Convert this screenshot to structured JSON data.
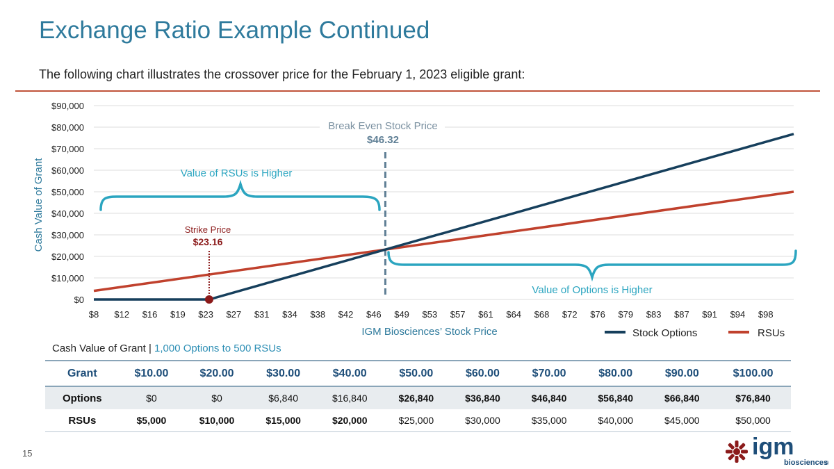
{
  "title": "Exchange Ratio Example Continued",
  "subtitle": "The following chart illustrates the crossover price for the February 1, 2023 eligible grant:",
  "page_number": "15",
  "logo": {
    "main": "igm",
    "sub": "biosciences",
    "reg": "®"
  },
  "chart_data": {
    "type": "line",
    "x_ticks": [
      "$8",
      "$12",
      "$16",
      "$19",
      "$23",
      "$27",
      "$31",
      "$34",
      "$38",
      "$42",
      "$46",
      "$49",
      "$53",
      "$57",
      "$61",
      "$64",
      "$68",
      "$72",
      "$76",
      "$79",
      "$83",
      "$87",
      "$91",
      "$94",
      "$98"
    ],
    "xlim": [
      8,
      100
    ],
    "ylim": [
      0,
      90000
    ],
    "y_ticks": [
      {
        "value": 0,
        "label": "$0"
      },
      {
        "value": 10000,
        "label": "$10,000"
      },
      {
        "value": 20000,
        "label": "$20,000"
      },
      {
        "value": 30000,
        "label": "$30,000"
      },
      {
        "value": 40000,
        "label": "$40,000"
      },
      {
        "value": 50000,
        "label": "$50,000"
      },
      {
        "value": 60000,
        "label": "$60,000"
      },
      {
        "value": 70000,
        "label": "$70,000"
      },
      {
        "value": 80000,
        "label": "$80,000"
      },
      {
        "value": 90000,
        "label": "$90,000"
      }
    ],
    "xlabel": "IGM Biosciences’ Stock Price",
    "ylabel": "Cash Value of Grant",
    "series": [
      {
        "name": "Stock Options",
        "color": "#163f5c",
        "points": [
          [
            8,
            0
          ],
          [
            23.16,
            0
          ],
          [
            100,
            76840
          ]
        ]
      },
      {
        "name": "RSUs",
        "color": "#c0412d",
        "points": [
          [
            8,
            4000
          ],
          [
            100,
            50000
          ]
        ]
      }
    ],
    "break_even": {
      "label": "Break Even Stock Price",
      "value_label": "$46.32",
      "x": 46.32
    },
    "strike": {
      "label": "Strike Price",
      "value_label": "$23.16",
      "x": 23.16
    },
    "annotations": {
      "rsu_higher": "Value of RSUs is Higher",
      "options_higher": "Value of Options is Higher"
    },
    "colors": {
      "brace": "#2ba5c0",
      "grid": "#dcdcdc",
      "dashed": "#5f7f95",
      "strike": "#8b1a1a"
    }
  },
  "table": {
    "caption_main": "Cash Value of Grant |",
    "caption_accent": "1,000 Options to 500 RSUs",
    "headers": [
      "Grant",
      "$10.00",
      "$20.00",
      "$30.00",
      "$40.00",
      "$50.00",
      "$60.00",
      "$70.00",
      "$80.00",
      "$90.00",
      "$100.00"
    ],
    "rows": [
      {
        "label": "Options",
        "values": [
          "$0",
          "$0",
          "$6,840",
          "$16,840",
          "$26,840",
          "$36,840",
          "$46,840",
          "$56,840",
          "$66,840",
          "$76,840"
        ]
      },
      {
        "label": "RSUs",
        "values": [
          "$5,000",
          "$10,000",
          "$15,000",
          "$20,000",
          "$25,000",
          "$30,000",
          "$35,000",
          "$40,000",
          "$45,000",
          "$50,000"
        ]
      }
    ]
  }
}
